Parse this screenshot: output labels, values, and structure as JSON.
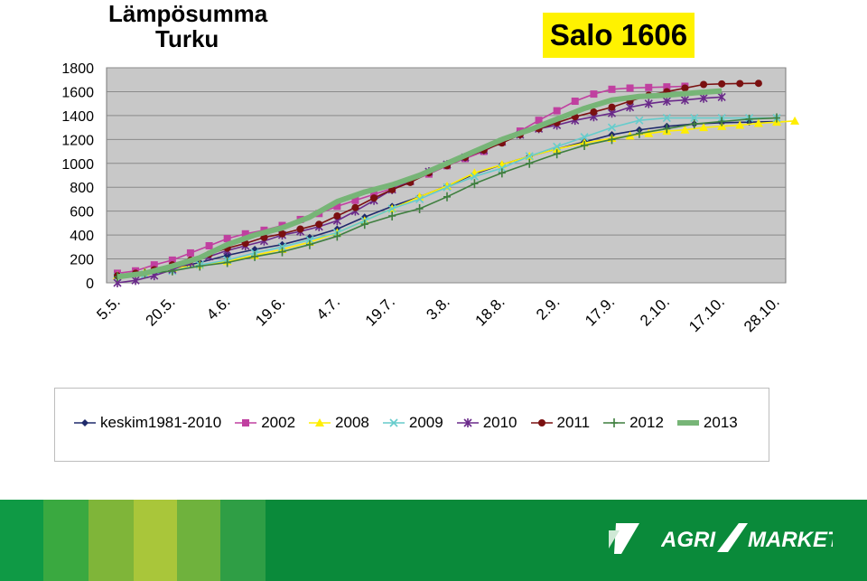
{
  "chart_data": {
    "type": "line",
    "title": "Lämpösumma",
    "subtitle": "Turku",
    "badge": "Salo 1606",
    "ylim": [
      0,
      1800
    ],
    "yticks": [
      0,
      200,
      400,
      600,
      800,
      1000,
      1200,
      1400,
      1600,
      1800
    ],
    "categories": [
      "5.5.",
      "20.5.",
      "4.6.",
      "19.6.",
      "4.7.",
      "19.7.",
      "3.8.",
      "18.8.",
      "2.9.",
      "17.9.",
      "2.10.",
      "17.10.",
      "28.10."
    ],
    "grid": true,
    "legend": "bottom",
    "series": [
      {
        "name": "keskim1981-2010",
        "color": "#1f2a6b",
        "marker": "diamond",
        "x": [
          0,
          0.5,
          1,
          1.5,
          2,
          2.5,
          3,
          3.5,
          4,
          4.5,
          5,
          5.5,
          6,
          6.5,
          7,
          7.5,
          8,
          8.5,
          9,
          9.5,
          10,
          10.5,
          11,
          11.5,
          12
        ],
        "values": [
          60,
          80,
          120,
          170,
          230,
          280,
          320,
          380,
          450,
          550,
          640,
          720,
          810,
          910,
          990,
          1060,
          1120,
          1180,
          1240,
          1280,
          1310,
          1330,
          1340,
          1345,
          1350
        ]
      },
      {
        "name": "2002",
        "color": "#c040a0",
        "marker": "square",
        "x": [
          0,
          0.33,
          0.67,
          1,
          1.33,
          1.67,
          2,
          2.33,
          2.67,
          3,
          3.33,
          3.67,
          4,
          4.33,
          4.67,
          5,
          5.33,
          5.67,
          6,
          6.33,
          6.67,
          7,
          7.33,
          7.67,
          8,
          8.33,
          8.67,
          9,
          9.33,
          9.67,
          10,
          10.33
        ],
        "values": [
          80,
          100,
          150,
          190,
          250,
          310,
          370,
          410,
          440,
          480,
          530,
          580,
          640,
          690,
          740,
          790,
          850,
          910,
          980,
          1040,
          1100,
          1180,
          1270,
          1360,
          1440,
          1520,
          1580,
          1620,
          1630,
          1635,
          1640,
          1645
        ]
      },
      {
        "name": "2008",
        "color": "#ffee00",
        "marker": "triangle",
        "x": [
          0,
          0.5,
          1,
          1.5,
          2,
          2.5,
          3,
          3.5,
          4,
          4.5,
          5,
          5.5,
          6,
          6.5,
          7,
          7.5,
          8,
          8.5,
          9,
          9.33,
          9.67,
          10,
          10.33,
          10.67,
          11,
          11.33,
          11.67,
          12,
          12.33
        ],
        "values": [
          60,
          90,
          120,
          150,
          180,
          230,
          280,
          340,
          420,
          520,
          620,
          720,
          810,
          920,
          990,
          1060,
          1120,
          1170,
          1210,
          1230,
          1250,
          1270,
          1280,
          1300,
          1310,
          1320,
          1335,
          1345,
          1355
        ]
      },
      {
        "name": "2009",
        "color": "#66cccc",
        "marker": "x",
        "x": [
          0,
          0.5,
          1,
          1.5,
          2,
          2.5,
          3,
          3.5,
          4,
          4.5,
          5,
          5.5,
          6,
          6.5,
          7,
          7.5,
          8,
          8.5,
          9,
          9.5,
          10,
          10.5,
          11,
          11.5,
          12
        ],
        "values": [
          50,
          70,
          100,
          150,
          190,
          250,
          300,
          360,
          420,
          520,
          620,
          700,
          800,
          890,
          960,
          1060,
          1140,
          1220,
          1300,
          1360,
          1380,
          1380,
          1380,
          1380,
          1380
        ]
      },
      {
        "name": "2010",
        "color": "#6a2a8a",
        "marker": "star",
        "x": [
          0,
          0.33,
          0.67,
          1,
          1.33,
          1.67,
          2,
          2.33,
          2.67,
          3,
          3.33,
          3.67,
          4,
          4.33,
          4.67,
          5,
          5.33,
          5.67,
          6,
          6.33,
          6.67,
          7,
          7.33,
          7.67,
          8,
          8.33,
          8.67,
          9,
          9.33,
          9.67,
          10,
          10.33,
          10.67,
          11
        ],
        "values": [
          0,
          20,
          60,
          110,
          170,
          220,
          270,
          310,
          350,
          400,
          430,
          470,
          520,
          600,
          690,
          780,
          850,
          930,
          990,
          1050,
          1110,
          1180,
          1240,
          1290,
          1320,
          1360,
          1390,
          1420,
          1470,
          1500,
          1520,
          1530,
          1545,
          1555
        ]
      },
      {
        "name": "2011",
        "color": "#7a1010",
        "marker": "circle",
        "x": [
          0,
          0.33,
          0.67,
          1,
          1.33,
          1.67,
          2,
          2.33,
          2.67,
          3,
          3.33,
          3.67,
          4,
          4.33,
          4.67,
          5,
          5.33,
          5.67,
          6,
          6.33,
          6.67,
          7,
          7.33,
          7.67,
          8,
          8.33,
          8.67,
          9,
          9.33,
          9.67,
          10,
          10.33,
          10.67,
          11,
          11.33,
          11.67
        ],
        "values": [
          60,
          80,
          110,
          150,
          190,
          240,
          290,
          330,
          380,
          410,
          450,
          490,
          560,
          630,
          710,
          780,
          840,
          920,
          980,
          1050,
          1110,
          1170,
          1240,
          1290,
          1340,
          1390,
          1430,
          1470,
          1520,
          1570,
          1600,
          1630,
          1660,
          1665,
          1668,
          1670
        ]
      },
      {
        "name": "2012",
        "color": "#3f7f3f",
        "marker": "plus",
        "x": [
          0,
          0.5,
          1,
          1.5,
          2,
          2.5,
          3,
          3.5,
          4,
          4.5,
          5,
          5.5,
          6,
          6.5,
          7,
          7.5,
          8,
          8.5,
          9,
          9.5,
          10,
          10.5,
          11,
          11.5,
          12
        ],
        "values": [
          50,
          80,
          100,
          140,
          170,
          220,
          260,
          320,
          390,
          490,
          560,
          620,
          720,
          830,
          920,
          1000,
          1080,
          1150,
          1200,
          1250,
          1290,
          1330,
          1350,
          1370,
          1380
        ]
      },
      {
        "name": "2013",
        "color": "#77b577",
        "marker": "none",
        "x": [
          0,
          0.5,
          1,
          1.5,
          2,
          2.5,
          3,
          3.5,
          4,
          4.5,
          5,
          5.5,
          6,
          6.5,
          7,
          7.5,
          8,
          8.5,
          9,
          9.5,
          10,
          10.5,
          11
        ],
        "values": [
          50,
          80,
          140,
          210,
          320,
          400,
          460,
          550,
          680,
          760,
          820,
          900,
          1000,
          1100,
          1200,
          1280,
          1370,
          1460,
          1530,
          1560,
          1570,
          1590,
          1606
        ]
      }
    ]
  }
}
